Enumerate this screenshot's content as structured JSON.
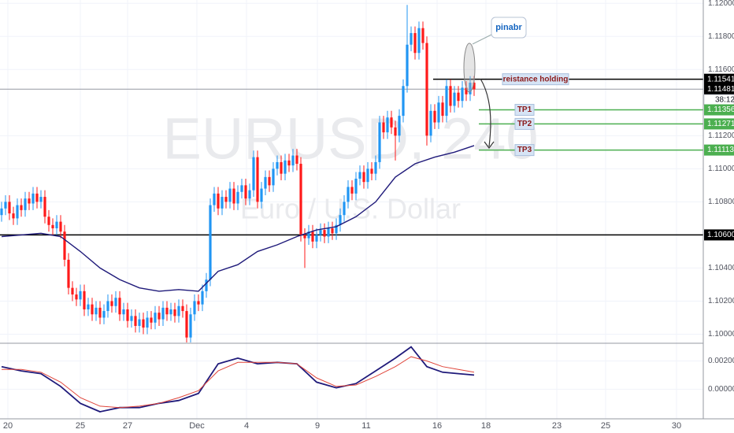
{
  "chart_data": [
    {
      "type": "candlestick",
      "title": "EURUSD, 240",
      "subtitle": "Euro / U.S. Dollar",
      "up_color": "#2196f3",
      "down_color": "#ff1a1a",
      "xlim": [
        -0.4,
        178.2
      ],
      "xticks": [
        {
          "value": 1.6,
          "label": "20"
        },
        {
          "value": 20,
          "label": "25"
        },
        {
          "value": 32,
          "label": "27"
        },
        {
          "value": 49.6,
          "label": "Dec"
        },
        {
          "value": 62.2,
          "label": "4"
        },
        {
          "value": 80.2,
          "label": "9"
        },
        {
          "value": 92.6,
          "label": "11"
        },
        {
          "value": 110.6,
          "label": "16"
        },
        {
          "value": 123,
          "label": "18"
        },
        {
          "value": 141,
          "label": "23"
        },
        {
          "value": 153.4,
          "label": "25"
        },
        {
          "value": 171.4,
          "label": "30"
        }
      ],
      "ylim": [
        1.0995,
        1.1202
      ],
      "yticks": [
        {
          "value": 1.12,
          "label": "1.12000"
        },
        {
          "value": 1.118,
          "label": "1.11800"
        },
        {
          "value": 1.116,
          "label": "1.11600"
        },
        {
          "value": 1.112,
          "label": "1.11200"
        },
        {
          "value": 1.11,
          "label": "1.11000"
        },
        {
          "value": 1.108,
          "label": "1.10800"
        },
        {
          "value": 1.104,
          "label": "1.10400"
        },
        {
          "value": 1.102,
          "label": "1.10200"
        },
        {
          "value": 1.1,
          "label": "1.10000"
        }
      ],
      "open": [
        1.1072,
        1.1076,
        1.108,
        1.1073,
        1.107,
        1.1078,
        1.1075,
        1.1082,
        1.1079,
        1.1085,
        1.108,
        1.1083,
        1.1071,
        1.1066,
        1.1064,
        1.1068,
        1.1062,
        1.1045,
        1.1028,
        1.1024,
        1.1021,
        1.1026,
        1.1015,
        1.1018,
        1.1012,
        1.1016,
        1.101,
        1.1014,
        1.102,
        1.1017,
        1.1022,
        1.1012,
        1.1015,
        1.1008,
        1.1011,
        1.1005,
        1.1009,
        1.1004,
        1.101,
        1.1007,
        1.1013,
        1.1009,
        1.1016,
        1.1012,
        1.1015,
        1.1011,
        1.1017,
        1.1014,
        1.0998,
        1.1012,
        1.102,
        1.1018,
        1.1026,
        1.1033,
        1.1078,
        1.1085,
        1.1076,
        1.1083,
        1.108,
        1.1088,
        1.1079,
        1.1086,
        1.109,
        1.1082,
        1.1087,
        1.1107,
        1.108,
        1.1088,
        1.1095,
        1.109,
        1.11,
        1.1104,
        1.1097,
        1.1105,
        1.1102,
        1.1108,
        1.1103,
        1.106,
        1.1058,
        1.1062,
        1.1056,
        1.106,
        1.1063,
        1.1059,
        1.1064,
        1.1061,
        1.1066,
        1.1072,
        1.108,
        1.1089,
        1.1085,
        1.1094,
        1.1098,
        1.1092,
        1.11,
        1.1097,
        1.1104,
        1.1128,
        1.1122,
        1.1131,
        1.1125,
        1.112,
        1.1132,
        1.115,
        1.1175,
        1.1182,
        1.117,
        1.1185,
        1.1176,
        1.112,
        1.1135,
        1.1128,
        1.114,
        1.1132,
        1.115,
        1.1138,
        1.1146,
        1.1141,
        1.1149,
        1.1145,
        1.1152
      ],
      "high": [
        1.108,
        1.1084,
        1.1084,
        1.1077,
        1.1082,
        1.1082,
        1.1086,
        1.1086,
        1.1089,
        1.1089,
        1.1087,
        1.1087,
        1.1075,
        1.107,
        1.1072,
        1.1072,
        1.1066,
        1.1049,
        1.1032,
        1.1028,
        1.103,
        1.103,
        1.1022,
        1.1022,
        1.102,
        1.102,
        1.1018,
        1.1024,
        1.1024,
        1.1026,
        1.1026,
        1.1019,
        1.1019,
        1.1015,
        1.1015,
        1.1013,
        1.1013,
        1.1014,
        1.1014,
        1.1017,
        1.1017,
        1.102,
        1.102,
        1.1019,
        1.1019,
        1.1021,
        1.1021,
        1.1018,
        1.1016,
        1.1024,
        1.1024,
        1.103,
        1.1037,
        1.1082,
        1.1089,
        1.1089,
        1.1087,
        1.1087,
        1.1092,
        1.1092,
        1.109,
        1.1094,
        1.1094,
        1.1091,
        1.1111,
        1.1111,
        1.1092,
        1.1099,
        1.1099,
        1.1104,
        1.1108,
        1.1108,
        1.1109,
        1.1109,
        1.1112,
        1.1112,
        1.1107,
        1.1064,
        1.1066,
        1.1066,
        1.1064,
        1.1067,
        1.1067,
        1.1068,
        1.1068,
        1.107,
        1.1076,
        1.1084,
        1.1093,
        1.1093,
        1.1098,
        1.1102,
        1.1102,
        1.1104,
        1.1104,
        1.1108,
        1.1132,
        1.1132,
        1.1135,
        1.1135,
        1.1129,
        1.1136,
        1.1154,
        1.1199,
        1.1186,
        1.1186,
        1.1189,
        1.1189,
        1.118,
        1.1139,
        1.1139,
        1.1144,
        1.1144,
        1.1154,
        1.1154,
        1.115,
        1.115,
        1.1153,
        1.1153,
        1.1156,
        1.1156
      ],
      "low": [
        1.1068,
        1.1072,
        1.1069,
        1.1066,
        1.1066,
        1.1071,
        1.1071,
        1.1075,
        1.1075,
        1.1076,
        1.1076,
        1.1067,
        1.1062,
        1.106,
        1.106,
        1.1058,
        1.1041,
        1.1024,
        1.102,
        1.1017,
        1.1017,
        1.1011,
        1.1011,
        1.1008,
        1.1008,
        1.1006,
        1.1006,
        1.101,
        1.1013,
        1.1013,
        1.1008,
        1.1008,
        1.1004,
        1.1004,
        1.1001,
        1.1001,
        1.1,
        1.1,
        1.1003,
        1.1003,
        1.1005,
        1.1005,
        1.1008,
        1.1008,
        1.1007,
        1.1007,
        1.101,
        1.0994,
        1.0994,
        1.1008,
        1.1014,
        1.1014,
        1.1022,
        1.1029,
        1.1074,
        1.1072,
        1.1072,
        1.1076,
        1.1076,
        1.1075,
        1.1075,
        1.1082,
        1.1078,
        1.1078,
        1.1083,
        1.1076,
        1.1076,
        1.1084,
        1.1086,
        1.1086,
        1.1096,
        1.1093,
        1.1093,
        1.1098,
        1.1098,
        1.1099,
        1.1056,
        1.104,
        1.1054,
        1.1052,
        1.1052,
        1.1056,
        1.1055,
        1.1055,
        1.1057,
        1.1057,
        1.1062,
        1.1068,
        1.1076,
        1.1081,
        1.1081,
        1.109,
        1.1088,
        1.1088,
        1.1093,
        1.1093,
        1.11,
        1.1118,
        1.1118,
        1.1121,
        1.1105,
        1.1116,
        1.1128,
        1.1146,
        1.1171,
        1.1166,
        1.1166,
        1.1172,
        1.1114,
        1.1116,
        1.1124,
        1.1124,
        1.1128,
        1.1128,
        1.1134,
        1.1134,
        1.1137,
        1.1137,
        1.1141,
        1.1141,
        1.1144
      ],
      "close": [
        1.1076,
        1.108,
        1.1073,
        1.107,
        1.1078,
        1.1075,
        1.1082,
        1.1079,
        1.1085,
        1.108,
        1.1083,
        1.1071,
        1.1066,
        1.1064,
        1.1068,
        1.1062,
        1.1045,
        1.1028,
        1.1024,
        1.1021,
        1.1026,
        1.1015,
        1.1018,
        1.1012,
        1.1016,
        1.101,
        1.1014,
        1.102,
        1.1017,
        1.1022,
        1.1012,
        1.1015,
        1.1008,
        1.1011,
        1.1005,
        1.1009,
        1.1004,
        1.101,
        1.1007,
        1.1013,
        1.1009,
        1.1016,
        1.1012,
        1.1015,
        1.1011,
        1.1017,
        1.1014,
        1.0998,
        1.1012,
        1.102,
        1.1018,
        1.1026,
        1.1033,
        1.1078,
        1.1085,
        1.1076,
        1.1083,
        1.108,
        1.1088,
        1.1079,
        1.1086,
        1.109,
        1.1082,
        1.1087,
        1.1107,
        1.108,
        1.1088,
        1.1095,
        1.109,
        1.11,
        1.1104,
        1.1097,
        1.1105,
        1.1102,
        1.1108,
        1.1103,
        1.106,
        1.1058,
        1.1062,
        1.1056,
        1.106,
        1.1063,
        1.1059,
        1.1064,
        1.1061,
        1.1066,
        1.1072,
        1.108,
        1.1089,
        1.1085,
        1.1094,
        1.1098,
        1.1092,
        1.11,
        1.1097,
        1.1104,
        1.1128,
        1.1122,
        1.1131,
        1.1125,
        1.112,
        1.1132,
        1.115,
        1.1175,
        1.1182,
        1.117,
        1.1185,
        1.1176,
        1.112,
        1.1135,
        1.1128,
        1.114,
        1.1132,
        1.115,
        1.1138,
        1.1146,
        1.1141,
        1.1149,
        1.1145,
        1.1152,
        1.1148
      ],
      "ma": {
        "color": "#1f1a7a",
        "x": [
          0,
          5,
          10,
          15,
          20,
          25,
          30,
          35,
          40,
          45,
          50,
          55,
          60,
          65,
          70,
          75,
          80,
          85,
          90,
          95,
          100,
          105,
          110,
          115,
          120
        ],
        "values": [
          1.1059,
          1.106,
          1.1061,
          1.1059,
          1.105,
          1.104,
          1.1033,
          1.1028,
          1.1026,
          1.1027,
          1.1026,
          1.1038,
          1.1042,
          1.105,
          1.1054,
          1.1059,
          1.1063,
          1.1065,
          1.1071,
          1.108,
          1.1095,
          1.1103,
          1.1107,
          1.111,
          1.1114
        ]
      },
      "levels": [
        {
          "price": {
            "value": 1.11541,
            "label": "1.11541"
          },
          "color": "#000000",
          "tag_color": "#000000",
          "note": "reistance holding"
        },
        {
          "price": {
            "value": 1.11481,
            "label": "1.11481"
          },
          "color": "#9598a1",
          "tag_color": "#000000",
          "countdown": "38:12"
        },
        {
          "price": {
            "value": 1.11356,
            "label": "1.11356"
          },
          "color": "#4caf50",
          "tag_color": "#4caf50",
          "note": "TP1"
        },
        {
          "price": {
            "value": 1.11271,
            "label": "1.11271"
          },
          "color": "#4caf50",
          "tag_color": "#4caf50",
          "note": "TP2"
        },
        {
          "price": {
            "value": 1.11113,
            "label": "1.11113"
          },
          "color": "#4caf50",
          "tag_color": "#4caf50",
          "note": "TP3"
        },
        {
          "price": {
            "value": 1.106,
            "label": "1.10600"
          },
          "color": "#000000",
          "tag_color": "#000000"
        }
      ],
      "annotations": [
        "pinabr"
      ]
    },
    {
      "type": "line",
      "ylim": [
        -0.0021,
        0.0032
      ],
      "yticks": [
        {
          "value": 0.002,
          "label": "0.00200"
        },
        {
          "value": 0,
          "label": "0.00000"
        }
      ],
      "series": [
        {
          "color": "#1f1a7a",
          "x": [
            0,
            5,
            10,
            15,
            20,
            25,
            30,
            35,
            40,
            45,
            50,
            55,
            60,
            65,
            70,
            75,
            80,
            85,
            90,
            95,
            100,
            104,
            108,
            112,
            116,
            120
          ],
          "values": [
            0.0016,
            0.0013,
            0.0011,
            0.0002,
            -0.001,
            -0.0016,
            -0.0013,
            -0.0013,
            -0.001,
            -0.0008,
            -0.0003,
            0.0018,
            0.0022,
            0.0018,
            0.0019,
            0.0018,
            0.0005,
            0.0001,
            0.0004,
            0.0013,
            0.0022,
            0.003,
            0.0016,
            0.0012,
            0.0011,
            0.001
          ]
        },
        {
          "color": "#e0453a",
          "x": [
            0,
            5,
            10,
            15,
            20,
            25,
            30,
            35,
            40,
            45,
            50,
            55,
            60,
            65,
            70,
            75,
            80,
            85,
            90,
            95,
            100,
            104,
            108,
            112,
            116,
            120
          ],
          "values": [
            0.0014,
            0.0014,
            0.0012,
            0.0005,
            -0.0006,
            -0.0012,
            -0.0013,
            -0.0012,
            -0.001,
            -0.0006,
            -0.0001,
            0.0013,
            0.0019,
            0.0019,
            0.0019,
            0.0018,
            0.0008,
            0.0002,
            0.0003,
            0.0009,
            0.0016,
            0.0023,
            0.002,
            0.0016,
            0.0014,
            0.0012
          ]
        }
      ]
    }
  ]
}
